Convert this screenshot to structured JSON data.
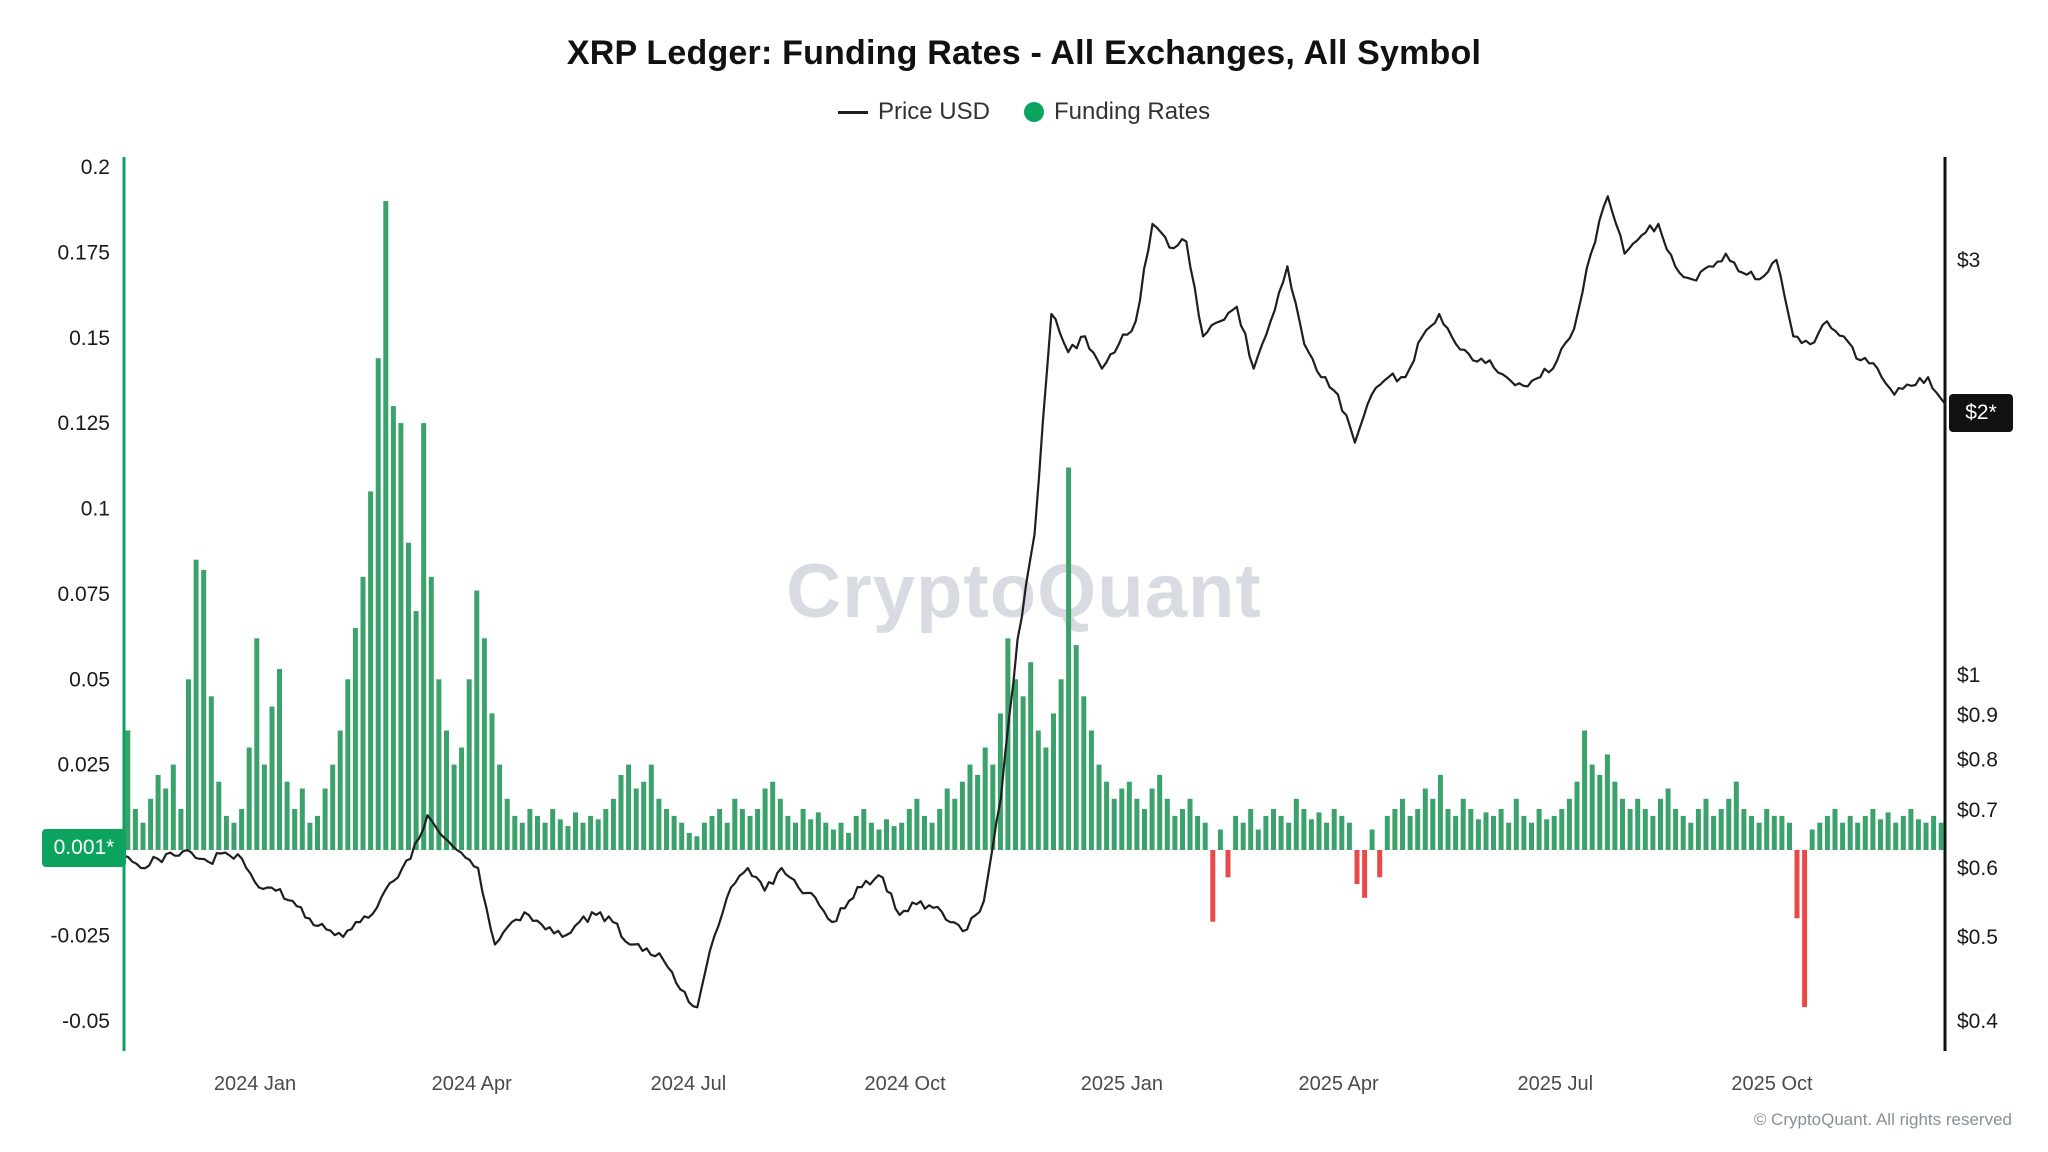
{
  "page": {
    "title": "XRP Ledger: Funding Rates - All Exchanges, All Symbol",
    "watermark": "CryptoQuant",
    "footer": "© CryptoQuant. All rights reserved"
  },
  "legend": {
    "price_label": "Price USD",
    "funding_label": "Funding Rates"
  },
  "badges": {
    "funding_current": "0.001*",
    "price_current": "$2*"
  },
  "colors": {
    "bar_positive": "#3ba26b",
    "bar_negative": "#e84a4a",
    "price_line": "#1f1f1f",
    "accent_green": "#0ca35f",
    "badge_dark": "#111111",
    "watermark": "#d8dbe1",
    "tick_text": "#1a1a1a",
    "x_tick_text": "#4a4a4a"
  },
  "chart_data": {
    "type": "line+bar",
    "title": "XRP Ledger: Funding Rates - All Exchanges, All Symbol",
    "x_ticks": [
      "2024 Jan",
      "2024 Apr",
      "2024 Jul",
      "2024 Oct",
      "2025 Jan",
      "2025 Apr",
      "2025 Jul",
      "2025 Oct"
    ],
    "x_range_estimate": [
      "2023-11",
      "2025-12"
    ],
    "left_axis": {
      "name": "Funding Rates",
      "scale": "linear",
      "ticks": [
        0.2,
        0.175,
        0.15,
        0.125,
        0.1,
        0.075,
        0.05,
        0.025,
        -0.025,
        -0.05
      ],
      "range": [
        -0.059,
        0.203
      ],
      "current_label": "0.001*",
      "current_value": 0.001
    },
    "right_axis": {
      "name": "Price USD",
      "scale": "log",
      "ticks": [
        {
          "label": "$3",
          "value": 3
        },
        {
          "label": "$1",
          "value": 1
        },
        {
          "label": "$0.9",
          "value": 0.9
        },
        {
          "label": "$0.8",
          "value": 0.8
        },
        {
          "label": "$0.7",
          "value": 0.7
        },
        {
          "label": "$0.6",
          "value": 0.6
        },
        {
          "label": "$0.5",
          "value": 0.5
        },
        {
          "label": "$0.4",
          "value": 0.4
        }
      ],
      "current_label": "$2*",
      "current_value": 2.05
    },
    "series": [
      {
        "name": "Funding Rates",
        "type": "bar",
        "axis": "left",
        "resolution_estimate": "approx 3-day bars, Nov 2023 - Dec 2025",
        "values": [
          0.035,
          0.012,
          0.008,
          0.015,
          0.022,
          0.018,
          0.025,
          0.012,
          0.05,
          0.085,
          0.082,
          0.045,
          0.02,
          0.01,
          0.008,
          0.012,
          0.03,
          0.062,
          0.025,
          0.042,
          0.053,
          0.02,
          0.012,
          0.018,
          0.008,
          0.01,
          0.018,
          0.025,
          0.035,
          0.05,
          0.065,
          0.08,
          0.105,
          0.144,
          0.19,
          0.13,
          0.125,
          0.09,
          0.07,
          0.125,
          0.08,
          0.05,
          0.035,
          0.025,
          0.03,
          0.05,
          0.076,
          0.062,
          0.04,
          0.025,
          0.015,
          0.01,
          0.008,
          0.012,
          0.01,
          0.008,
          0.012,
          0.009,
          0.007,
          0.011,
          0.008,
          0.01,
          0.009,
          0.012,
          0.015,
          0.022,
          0.025,
          0.018,
          0.02,
          0.025,
          0.015,
          0.012,
          0.01,
          0.008,
          0.005,
          0.004,
          0.008,
          0.01,
          0.012,
          0.008,
          0.015,
          0.012,
          0.01,
          0.012,
          0.018,
          0.02,
          0.015,
          0.01,
          0.008,
          0.012,
          0.009,
          0.011,
          0.008,
          0.006,
          0.008,
          0.005,
          0.01,
          0.012,
          0.008,
          0.006,
          0.009,
          0.007,
          0.008,
          0.012,
          0.015,
          0.01,
          0.008,
          0.012,
          0.018,
          0.015,
          0.02,
          0.025,
          0.022,
          0.03,
          0.025,
          0.04,
          0.062,
          0.05,
          0.045,
          0.055,
          0.035,
          0.03,
          0.04,
          0.05,
          0.112,
          0.06,
          0.045,
          0.035,
          0.025,
          0.02,
          0.015,
          0.018,
          0.02,
          0.015,
          0.012,
          0.018,
          0.022,
          0.015,
          0.01,
          0.012,
          0.015,
          0.01,
          0.008,
          -0.021,
          0.006,
          -0.008,
          0.01,
          0.008,
          0.012,
          0.006,
          0.01,
          0.012,
          0.01,
          0.008,
          0.015,
          0.012,
          0.009,
          0.011,
          0.008,
          0.012,
          0.01,
          0.008,
          -0.01,
          -0.014,
          0.006,
          -0.008,
          0.01,
          0.012,
          0.015,
          0.01,
          0.012,
          0.018,
          0.015,
          0.022,
          0.012,
          0.01,
          0.015,
          0.012,
          0.009,
          0.011,
          0.01,
          0.012,
          0.008,
          0.015,
          0.01,
          0.008,
          0.012,
          0.009,
          0.01,
          0.012,
          0.015,
          0.02,
          0.035,
          0.025,
          0.022,
          0.028,
          0.02,
          0.015,
          0.012,
          0.015,
          0.012,
          0.01,
          0.015,
          0.018,
          0.012,
          0.01,
          0.008,
          0.012,
          0.015,
          0.01,
          0.012,
          0.015,
          0.02,
          0.012,
          0.01,
          0.008,
          0.012,
          0.01,
          0.01,
          0.008,
          -0.02,
          -0.046,
          0.006,
          0.008,
          0.01,
          0.012,
          0.008,
          0.01,
          0.008,
          0.01,
          0.012,
          0.009,
          0.011,
          0.008,
          0.01,
          0.012,
          0.009,
          0.008,
          0.01,
          0.008
        ]
      },
      {
        "name": "Price USD",
        "type": "line",
        "axis": "right",
        "unit": "USD",
        "resolution_estimate": "approx weekly points, Nov 2023 - Dec 2025",
        "values": [
          0.62,
          0.6,
          0.615,
          0.62,
          0.625,
          0.61,
          0.625,
          0.615,
          0.57,
          0.565,
          0.55,
          0.525,
          0.51,
          0.5,
          0.52,
          0.54,
          0.58,
          0.615,
          0.69,
          0.65,
          0.625,
          0.6,
          0.49,
          0.52,
          0.53,
          0.51,
          0.5,
          0.52,
          0.53,
          0.52,
          0.49,
          0.485,
          0.47,
          0.435,
          0.415,
          0.5,
          0.57,
          0.6,
          0.565,
          0.6,
          0.57,
          0.555,
          0.52,
          0.55,
          0.58,
          0.585,
          0.53,
          0.545,
          0.54,
          0.52,
          0.51,
          0.55,
          0.72,
          1.1,
          1.45,
          2.6,
          2.35,
          2.45,
          2.25,
          2.4,
          2.55,
          3.3,
          3.1,
          3.15,
          2.45,
          2.55,
          2.65,
          2.25,
          2.55,
          2.95,
          2.4,
          2.2,
          2.1,
          1.85,
          2.1,
          2.2,
          2.2,
          2.45,
          2.6,
          2.4,
          2.3,
          2.3,
          2.2,
          2.15,
          2.2,
          2.3,
          2.5,
          3.05,
          3.55,
          3.05,
          3.2,
          3.3,
          2.95,
          2.85,
          2.95,
          3.05,
          2.9,
          2.85,
          3.0,
          2.45,
          2.4,
          2.55,
          2.45,
          2.3,
          2.25,
          2.1,
          2.15,
          2.2,
          2.05
        ]
      }
    ]
  }
}
